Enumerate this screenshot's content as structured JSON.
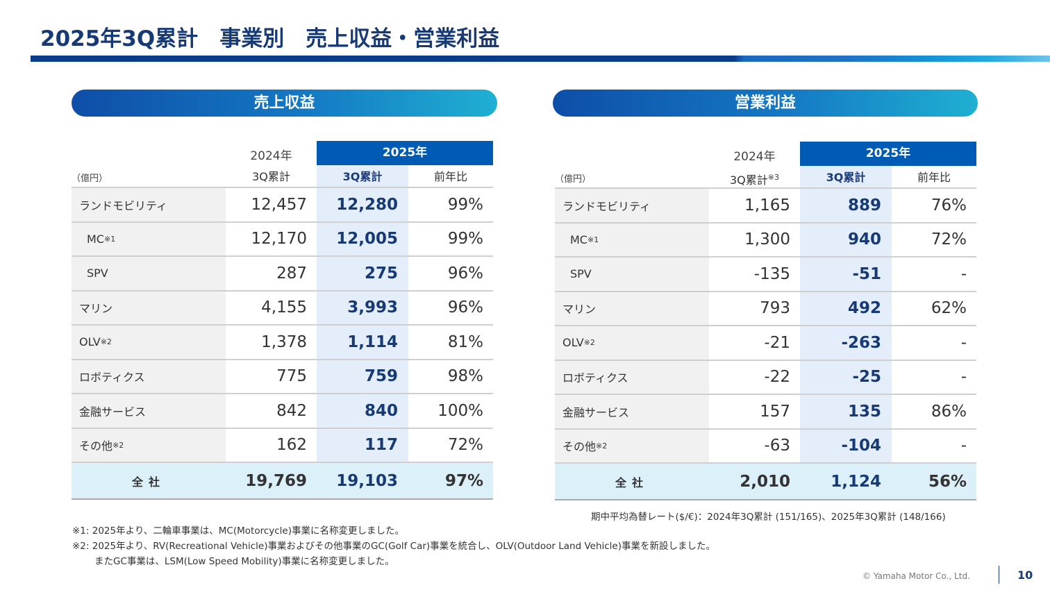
{
  "title": "2025年3Q累計　事業別　売上収益・営業利益",
  "revenue": {
    "heading": "売上収益",
    "unit": "（億円）",
    "col_2024_year": "2024年",
    "col_2024_sub": "3Q累計",
    "col_2025_year": "2025年",
    "col_2025_sub": "3Q累計",
    "col_yoy": "前年比",
    "rows": [
      {
        "label": "ランドモビリティ",
        "note": "",
        "v2024": "12,457",
        "v2025": "12,280",
        "yoy": "99%"
      },
      {
        "label": "MC",
        "note": "※1",
        "v2024": "12,170",
        "v2025": "12,005",
        "yoy": "99%"
      },
      {
        "label": "SPV",
        "note": "",
        "v2024": "287",
        "v2025": "275",
        "yoy": "96%"
      },
      {
        "label": "マリン",
        "note": "",
        "v2024": "4,155",
        "v2025": "3,993",
        "yoy": "96%"
      },
      {
        "label": "OLV",
        "note": "※2",
        "v2024": "1,378",
        "v2025": "1,114",
        "yoy": "81%"
      },
      {
        "label": "ロボティクス",
        "note": "",
        "v2024": "775",
        "v2025": "759",
        "yoy": "98%"
      },
      {
        "label": "金融サービス",
        "note": "",
        "v2024": "842",
        "v2025": "840",
        "yoy": "100%"
      },
      {
        "label": "その他",
        "note": "※2",
        "v2024": "162",
        "v2025": "117",
        "yoy": "72%"
      }
    ],
    "total": {
      "label": "全社",
      "v2024": "19,769",
      "v2025": "19,103",
      "yoy": "97%"
    }
  },
  "profit": {
    "heading": "営業利益",
    "unit": "（億円）",
    "col_2024_year": "2024年",
    "col_2024_sub": "3Q累計",
    "col_2024_note": "※3",
    "col_2025_year": "2025年",
    "col_2025_sub": "3Q累計",
    "col_yoy": "前年比",
    "rows": [
      {
        "label": "ランドモビリティ",
        "note": "",
        "v2024": "1,165",
        "v2025": "889",
        "yoy": "76%"
      },
      {
        "label": "MC",
        "note": "※1",
        "v2024": "1,300",
        "v2025": "940",
        "yoy": "72%"
      },
      {
        "label": "SPV",
        "note": "",
        "v2024": "-135",
        "v2025": "-51",
        "yoy": "-"
      },
      {
        "label": "マリン",
        "note": "",
        "v2024": "793",
        "v2025": "492",
        "yoy": "62%"
      },
      {
        "label": "OLV",
        "note": "※2",
        "v2024": "-21",
        "v2025": "-263",
        "yoy": "-"
      },
      {
        "label": "ロボティクス",
        "note": "",
        "v2024": "-22",
        "v2025": "-25",
        "yoy": "-"
      },
      {
        "label": "金融サービス",
        "note": "",
        "v2024": "157",
        "v2025": "135",
        "yoy": "86%"
      },
      {
        "label": "その他",
        "note": "※2",
        "v2024": "-63",
        "v2025": "-104",
        "yoy": "-"
      }
    ],
    "total": {
      "label": "全社",
      "v2024": "2,010",
      "v2025": "1,124",
      "yoy": "56%"
    }
  },
  "fx_note": "期中平均為替レート($/€)：2024年3Q累計 (151/165)、2025年3Q累計 (148/166)",
  "footnotes": [
    "※1: 2025年より、二輪車事業は、MC(Motorcycle)事業に名称変更しました。",
    "※2: 2025年より、RV(Recreational Vehicle)事業およびその他事業のGC(Golf Car)事業を統合し、OLV(Outdoor Land Vehicle)事業を新設しました。",
    "またGC事業は、LSM(Low Speed Mobility)事業に名称変更しました。"
  ],
  "copyright": "© Yamaha Motor Co., Ltd.",
  "page_number": "10"
}
